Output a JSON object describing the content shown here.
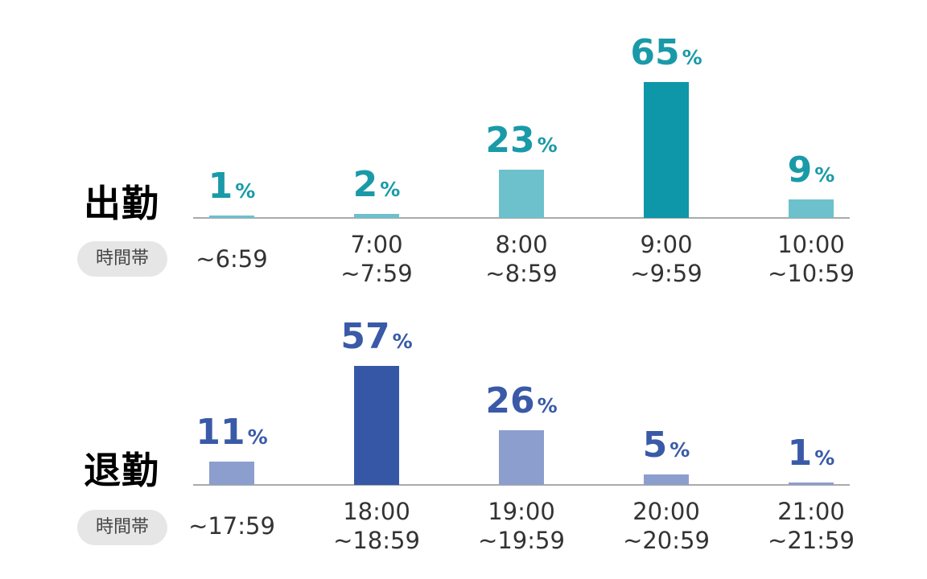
{
  "chart_data": [
    {
      "type": "bar",
      "title": "出勤",
      "xlabel": "時間帯",
      "categories": [
        "~6:59",
        "7:00\n~7:59",
        "8:00\n~8:59",
        "9:00\n~9:59",
        "10:00\n~10:59"
      ],
      "values": [
        1,
        2,
        23,
        65,
        9
      ],
      "value_labels": [
        "1",
        "2",
        "23",
        "65",
        "9"
      ],
      "unit": "%",
      "ylim": [
        0,
        65
      ],
      "grid": false,
      "colors": {
        "title": "#1a9aa8",
        "value_label": "#1a9aa8",
        "bar": "#6cc1cd",
        "bar_highlight": "#0d97a8"
      },
      "highlight_index": 3
    },
    {
      "type": "bar",
      "title": "退勤",
      "xlabel": "時間帯",
      "categories": [
        "~17:59",
        "18:00\n~18:59",
        "19:00\n~19:59",
        "20:00\n~20:59",
        "21:00\n~21:59"
      ],
      "values": [
        11,
        57,
        26,
        5,
        1
      ],
      "value_labels": [
        "11",
        "57",
        "26",
        "5",
        "1"
      ],
      "unit": "%",
      "ylim": [
        0,
        65
      ],
      "grid": false,
      "colors": {
        "title": "#3a5aa8",
        "value_label": "#3a5aa8",
        "bar": "#8c9ecd",
        "bar_highlight": "#3557a6"
      },
      "highlight_index": 1
    }
  ]
}
